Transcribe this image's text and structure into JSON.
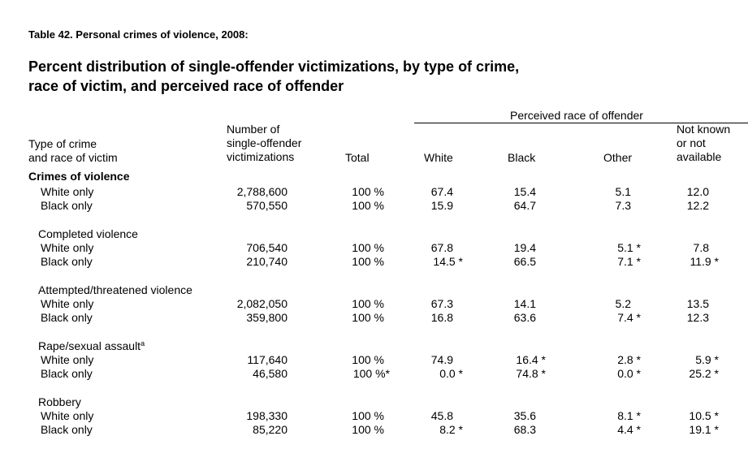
{
  "table_label": "Table 42. Personal crimes of violence, 2008:",
  "title_line1": "Percent distribution of single-offender victimizations, by type of crime,",
  "title_line2": "race of victim, and perceived race of offender",
  "spanner": "Perceived race of offender",
  "headers": {
    "type_line1": "Type of crime",
    "type_line2": "and race of victim",
    "number_line1": "Number of",
    "number_line2": "single-offender",
    "number_line3": "victimizations",
    "total": "Total",
    "white": "White",
    "black": "Black",
    "other": "Other",
    "notknown_line1": "Not known",
    "notknown_line2": "or not",
    "notknown_line3": "available"
  },
  "groups": [
    {
      "title": "Crimes of violence",
      "rows": [
        {
          "label": "White only",
          "number": "2,788,600",
          "total": "100 %",
          "white": "67.4",
          "black": "15.4",
          "other": "5.1",
          "notknown": "12.0"
        },
        {
          "label": "Black only",
          "number": "570,550",
          "total": "100 %",
          "white": "15.9",
          "black": "64.7",
          "other": "7.3",
          "notknown": "12.2"
        }
      ]
    },
    {
      "title": "Completed violence",
      "rows": [
        {
          "label": "White only",
          "number": "706,540",
          "total": "100 %",
          "white": "67.8",
          "black": "19.4",
          "other": "5.1 *",
          "notknown": "7.8"
        },
        {
          "label": "Black only",
          "number": "210,740",
          "total": "100 %",
          "white": "14.5 *",
          "black": "66.5",
          "other": "7.1 *",
          "notknown": "11.9 *"
        }
      ]
    },
    {
      "title": "Attempted/threatened violence",
      "rows": [
        {
          "label": "White only",
          "number": "2,082,050",
          "total": "100 %",
          "white": "67.3",
          "black": "14.1",
          "other": "5.2",
          "notknown": "13.5"
        },
        {
          "label": "Black only",
          "number": "359,800",
          "total": "100 %",
          "white": "16.8",
          "black": "63.6",
          "other": "7.4 *",
          "notknown": "12.3"
        }
      ]
    },
    {
      "title": "Rape/sexual assault",
      "footnote": "a",
      "rows": [
        {
          "label": "White only",
          "number": "117,640",
          "total": "100 %",
          "white": "74.9",
          "black": "16.4 *",
          "other": "2.8 *",
          "notknown": "5.9 *"
        },
        {
          "label": "Black only",
          "number": "46,580",
          "total": "100 %*",
          "white": "0.0 *",
          "black": "74.8 *",
          "other": "0.0 *",
          "notknown": "25.2 *"
        }
      ]
    },
    {
      "title": "Robbery",
      "rows": [
        {
          "label": "White only",
          "number": "198,330",
          "total": "100 %",
          "white": "45.8",
          "black": "35.6",
          "other": "8.1 *",
          "notknown": "10.5 *"
        },
        {
          "label": "Black only",
          "number": "85,220",
          "total": "100 %",
          "white": "8.2 *",
          "black": "68.3",
          "other": "4.4 *",
          "notknown": "19.1 *"
        }
      ]
    }
  ]
}
